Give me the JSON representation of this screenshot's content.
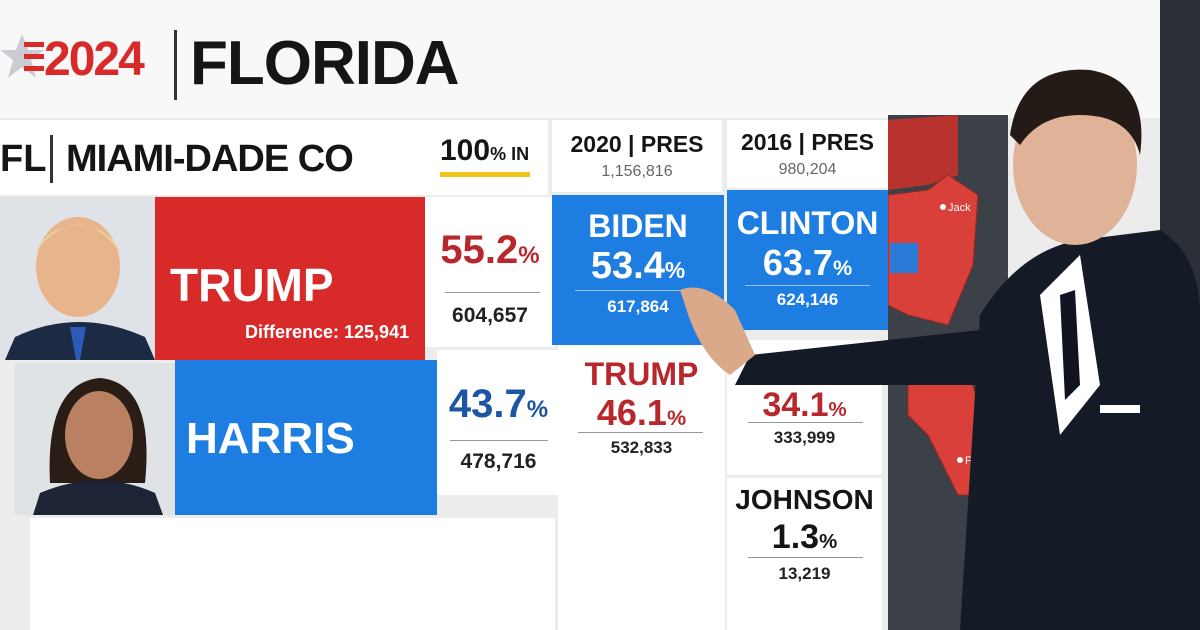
{
  "header": {
    "year": "2024",
    "state": "FLORIDA"
  },
  "county": {
    "state_abbr": "FL",
    "name": "MIAMI-DADE CO",
    "reporting": "100% IN"
  },
  "current": [
    {
      "name": "TRUMP",
      "pct": "55.2%",
      "votes": "604,657",
      "difference": "Difference: 125,941"
    },
    {
      "name": "HARRIS",
      "pct": "43.7%",
      "votes": "478,716"
    }
  ],
  "past": [
    {
      "title": "2020 | PRES",
      "total": "1,156,816",
      "results": [
        {
          "name": "BIDEN",
          "pct": "53.4%",
          "votes": "617,864"
        },
        {
          "name": "TRUMP",
          "pct": "46.1%",
          "votes": "532,833"
        }
      ]
    },
    {
      "title": "2016 | PRES",
      "total": "980,204",
      "results": [
        {
          "name": "CLINTON",
          "pct": "63.7%",
          "votes": "624,146"
        },
        {
          "pct": "34.1%",
          "votes": "333,999"
        },
        {
          "name": "JOHNSON",
          "pct": "1.3%",
          "votes": "13,219"
        }
      ]
    }
  ],
  "map_labels": [
    "Jack",
    "Fort"
  ]
}
